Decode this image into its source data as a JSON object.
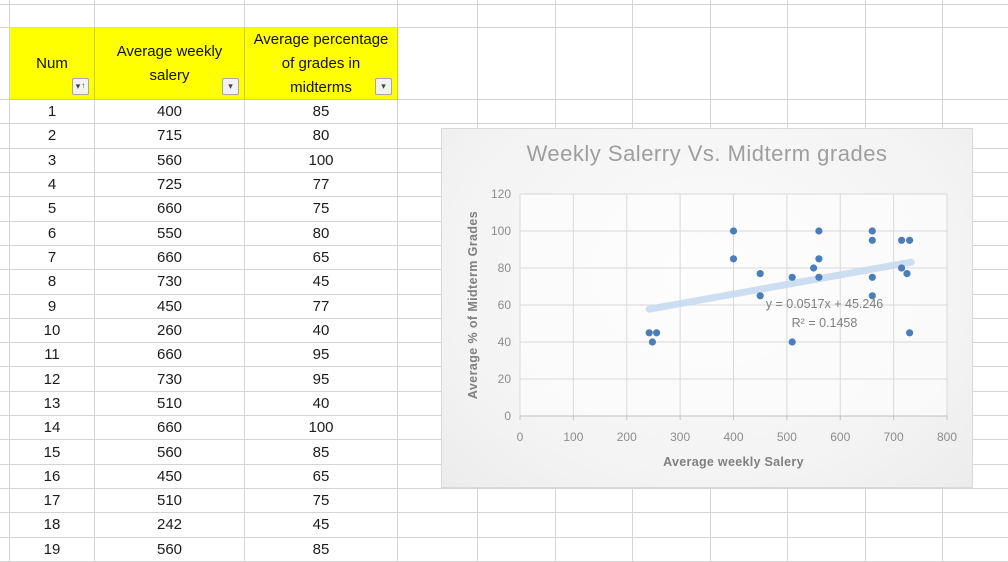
{
  "sheet": {
    "header_fill": "#ffff00",
    "headers": [
      {
        "label": "Num",
        "filter_icon": "sort-ascending-filter"
      },
      {
        "label": "Average weekly salery",
        "filter_icon": "filter-dropdown"
      },
      {
        "label": "Average percentage of grades in midterms",
        "filter_icon": "filter-dropdown"
      }
    ],
    "filter_glyphs": {
      "dropdown": "▾",
      "sort_asc": "↑"
    },
    "rows": [
      [
        1,
        400,
        85
      ],
      [
        2,
        715,
        80
      ],
      [
        3,
        560,
        100
      ],
      [
        4,
        725,
        77
      ],
      [
        5,
        660,
        75
      ],
      [
        6,
        550,
        80
      ],
      [
        7,
        660,
        65
      ],
      [
        8,
        730,
        45
      ],
      [
        9,
        450,
        77
      ],
      [
        10,
        260,
        40
      ],
      [
        11,
        660,
        95
      ],
      [
        12,
        730,
        95
      ],
      [
        13,
        510,
        40
      ],
      [
        14,
        660,
        100
      ],
      [
        15,
        560,
        85
      ],
      [
        16,
        450,
        65
      ],
      [
        17,
        510,
        75
      ],
      [
        18,
        242,
        45
      ],
      [
        19,
        560,
        85
      ]
    ]
  },
  "chart_data": {
    "type": "scatter",
    "title": "Weekly Salerry Vs. Midterm grades",
    "xlabel": "Average weekly Salery",
    "ylabel": "Average % of Midterm Grades",
    "xlim": [
      0,
      800
    ],
    "ylim": [
      0,
      120
    ],
    "xticks": [
      0,
      100,
      200,
      300,
      400,
      500,
      600,
      700,
      800
    ],
    "yticks": [
      0,
      20,
      40,
      60,
      80,
      100,
      120
    ],
    "grid": true,
    "legend": "none",
    "points": [
      [
        242,
        45
      ],
      [
        256,
        45
      ],
      [
        248,
        40
      ],
      [
        400,
        85
      ],
      [
        400,
        100
      ],
      [
        450,
        65
      ],
      [
        450,
        77
      ],
      [
        510,
        40
      ],
      [
        510,
        75
      ],
      [
        550,
        80
      ],
      [
        560,
        75
      ],
      [
        560,
        85
      ],
      [
        560,
        100
      ],
      [
        660,
        65
      ],
      [
        660,
        75
      ],
      [
        660,
        95
      ],
      [
        660,
        100
      ],
      [
        715,
        80
      ],
      [
        715,
        95
      ],
      [
        725,
        77
      ],
      [
        730,
        45
      ],
      [
        730,
        95
      ]
    ],
    "trendline": {
      "label_line1": "y = 0.0517x + 45.246",
      "label_line2": "R² = 0.1458",
      "slope": 0.0517,
      "intercept": 45.246,
      "x_start": 242,
      "x_end": 733
    },
    "colors": {
      "point": "#4a7ebb",
      "trendline": "#c9dbf1",
      "gridline": "#d9d9d9",
      "axis_line": "#c0c0c0",
      "tick_text": "#8c8c8c",
      "title_text": "#9e9e9e",
      "equation_text": "#7f7f7f"
    }
  }
}
